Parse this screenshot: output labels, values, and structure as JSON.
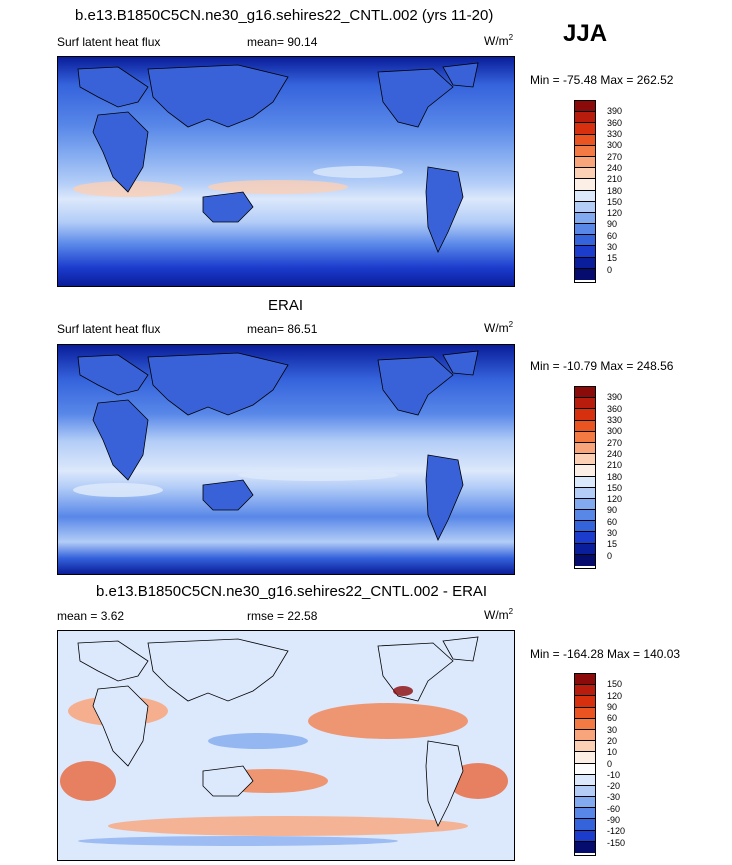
{
  "season": "JJA",
  "panels": [
    {
      "title": "b.e13.B1850C5CN.ne30_g16.sehires22_CNTL.002 (yrs 11-20)",
      "left_label": "Surf latent heat flux",
      "center_label": "mean=  90.14",
      "unit": "W/m",
      "unit_sup": "2",
      "minmax": "Min = -75.48 Max = 262.52",
      "colorbar_labels": [
        "390",
        "360",
        "330",
        "300",
        "270",
        "240",
        "210",
        "180",
        "150",
        "120",
        "90",
        "60",
        "30",
        "15",
        "0"
      ]
    },
    {
      "title": "ERAI",
      "left_label": "Surf latent heat flux",
      "center_label": "mean=  86.51",
      "unit": "W/m",
      "unit_sup": "2",
      "minmax": "Min = -10.79 Max = 248.56",
      "colorbar_labels": [
        "390",
        "360",
        "330",
        "300",
        "270",
        "240",
        "210",
        "180",
        "150",
        "120",
        "90",
        "60",
        "30",
        "15",
        "0"
      ]
    },
    {
      "title": "b.e13.B1850C5CN.ne30_g16.sehires22_CNTL.002 - ERAI",
      "left_label": "mean =   3.62",
      "center_label": "rmse =  22.58",
      "unit": "W/m",
      "unit_sup": "2",
      "minmax": "Min = -164.28 Max = 140.03",
      "colorbar_labels": [
        "150",
        "120",
        "90",
        "60",
        "30",
        "20",
        "10",
        "0",
        "-10",
        "-20",
        "-30",
        "-60",
        "-90",
        "-120",
        "-150"
      ]
    }
  ],
  "colors": {
    "abs_scale": [
      "#8b0a0a",
      "#b81c0c",
      "#d7300f",
      "#ea5420",
      "#f47a44",
      "#f9a57b",
      "#fcd0b4",
      "#fcefe6",
      "#dce8fb",
      "#b3cdf7",
      "#82aaf0",
      "#5887e8",
      "#3563dc",
      "#1c3ccd",
      "#0a1d9a",
      "#050c6e"
    ],
    "diff_scale": [
      "#8b0a0a",
      "#b81c0c",
      "#d7300f",
      "#ea5420",
      "#f47a44",
      "#f9a57b",
      "#fcd0b4",
      "#fcefe6",
      "#fdfdfd",
      "#dce8fb",
      "#b3cdf7",
      "#82aaf0",
      "#5887e8",
      "#3563dc",
      "#1c3ccd",
      "#050c6e"
    ]
  }
}
